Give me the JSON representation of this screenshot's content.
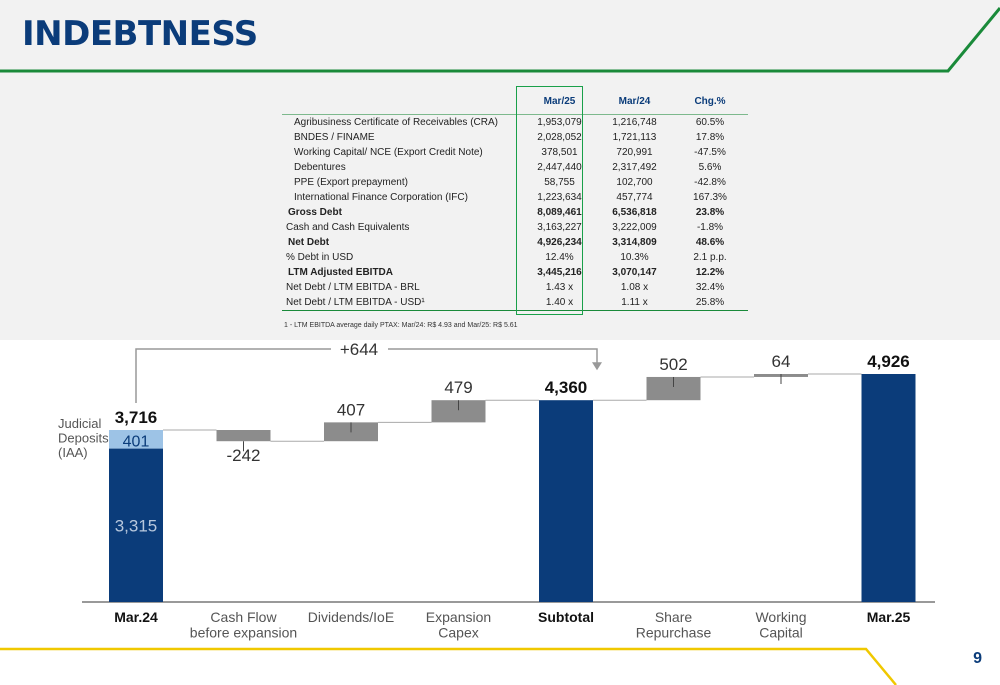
{
  "header": {
    "title": "INDEBTNESS",
    "page_number": "9"
  },
  "colors": {
    "navy": "#0b3c7a",
    "light_blue": "#9dc3e6",
    "gray": "#8c8c8c",
    "green": "#1a8a3a",
    "yellow": "#f0c800"
  },
  "debt_table": {
    "columns": [
      "",
      "Mar/25",
      "Mar/24",
      "Chg.%"
    ],
    "rows": [
      {
        "label": "Agribusiness Certificate of Receivables (CRA)",
        "mar25": "1,953,079",
        "mar24": "1,216,748",
        "chg": "60.5%",
        "style": "indent"
      },
      {
        "label": "BNDES / FINAME",
        "mar25": "2,028,052",
        "mar24": "1,721,113",
        "chg": "17.8%",
        "style": "indent"
      },
      {
        "label": "Working Capital/ NCE (Export Credit Note)",
        "mar25": "378,501",
        "mar24": "720,991",
        "chg": "-47.5%",
        "style": "indent"
      },
      {
        "label": "Debentures",
        "mar25": "2,447,440",
        "mar24": "2,317,492",
        "chg": "5.6%",
        "style": "indent"
      },
      {
        "label": "PPE (Export prepayment)",
        "mar25": "58,755",
        "mar24": "102,700",
        "chg": "-42.8%",
        "style": "indent"
      },
      {
        "label": "International Finance Corporation (IFC)",
        "mar25": "1,223,634",
        "mar24": "457,774",
        "chg": "167.3%",
        "style": "indent"
      },
      {
        "label": "Gross Debt",
        "mar25": "8,089,461",
        "mar24": "6,536,818",
        "chg": "23.8%",
        "style": "bold"
      },
      {
        "label": "Cash and Cash Equivalents",
        "mar25": "3,163,227",
        "mar24": "3,222,009",
        "chg": "-1.8%",
        "style": "plain"
      },
      {
        "label": "Net Debt",
        "mar25": "4,926,234",
        "mar24": "3,314,809",
        "chg": "48.6%",
        "style": "bold"
      },
      {
        "label": "% Debt in USD",
        "mar25": "12.4%",
        "mar24": "10.3%",
        "chg": "2.1 p.p.",
        "style": "plain"
      },
      {
        "label": "LTM Adjusted EBITDA",
        "mar25": "3,445,216",
        "mar24": "3,070,147",
        "chg": "12.2%",
        "style": "bold"
      },
      {
        "label": "Net Debt / LTM EBITDA - BRL",
        "mar25": "1.43 x",
        "mar24": "1.08 x",
        "chg": "32.4%",
        "style": "plain"
      },
      {
        "label": "Net Debt / LTM EBITDA - USD¹",
        "mar25": "1.40 x",
        "mar24": "1.11 x",
        "chg": "25.8%",
        "style": "plain"
      }
    ],
    "footnote": "1 - LTM EBITDA average daily PTAX: Mar/24: R$ 4.93 and Mar/25: R$ 5.61"
  },
  "chart_data": {
    "type": "bar",
    "subtype": "waterfall",
    "categories": [
      "Mar.24",
      "Cash Flow\nbefore expansion",
      "Dividends/IoE",
      "Expansion\nCapex",
      "Subtotal",
      "Share\nRepurchase",
      "Working\nCapital",
      "Mar.25"
    ],
    "bold_categories": [
      "Mar.24",
      "Subtotal",
      "Mar.25"
    ],
    "steps": [
      {
        "category": "Mar.24",
        "kind": "total",
        "value": 3716,
        "label": "3,716",
        "stack": [
          {
            "name": "",
            "value": 3315,
            "label": "3,315"
          },
          {
            "name": "Judicial\nDeposits\n(IAA)",
            "value": 401,
            "label": "401"
          }
        ]
      },
      {
        "category": "Cash Flow before expansion",
        "kind": "delta",
        "value": -242,
        "label": "-242"
      },
      {
        "category": "Dividends/IoE",
        "kind": "delta",
        "value": 407,
        "label": "407"
      },
      {
        "category": "Expansion Capex",
        "kind": "delta",
        "value": 479,
        "label": "479"
      },
      {
        "category": "Subtotal",
        "kind": "total",
        "value": 4360,
        "label": "4,360"
      },
      {
        "category": "Share Repurchase",
        "kind": "delta",
        "value": 502,
        "label": "502"
      },
      {
        "category": "Working Capital",
        "kind": "delta",
        "value": 64,
        "label": "64"
      },
      {
        "category": "Mar.25",
        "kind": "total",
        "value": 4926,
        "label": "4,926"
      }
    ],
    "bracket": {
      "from": "Mar.24",
      "to": "Subtotal",
      "label": "+644"
    },
    "side_label": "Judicial\nDeposits\n(IAA)",
    "ylim": [
      0,
      5200
    ]
  }
}
